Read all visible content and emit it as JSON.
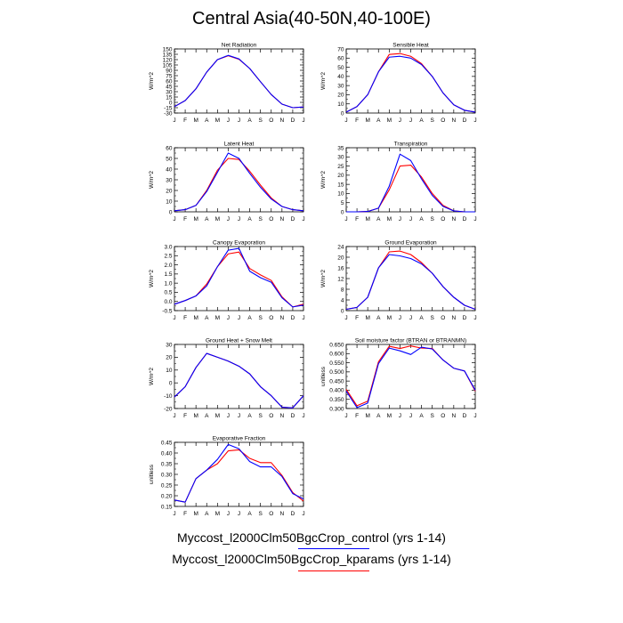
{
  "title": "Central Asia(40-50N,40-100E)",
  "legend": [
    {
      "label": "Myccost_l2000Clm50BgcCrop_control (yrs 1-14)",
      "color": "#0000ff"
    },
    {
      "label": "Myccost_l2000Clm50BgcCrop_kparams (yrs 1-14)",
      "color": "#ff0000"
    }
  ],
  "chart_data": [
    {
      "type": "line",
      "title": "Net Radiation",
      "ylabel": "W/m^2",
      "x": [
        "J",
        "F",
        "M",
        "A",
        "M",
        "J",
        "J",
        "A",
        "S",
        "O",
        "N",
        "D",
        "J"
      ],
      "ylim": [
        -30,
        150
      ],
      "yticks": [
        "-30",
        "-15",
        "0",
        "15",
        "30",
        "45",
        "60",
        "75",
        "90",
        "105",
        "120",
        "135",
        "150"
      ],
      "grid": false,
      "series": [
        {
          "color": "#0000ff",
          "values": [
            -12,
            5,
            38,
            85,
            120,
            132,
            122,
            95,
            58,
            22,
            -5,
            -15,
            -13
          ]
        },
        {
          "color": "#ff0000",
          "values": [
            -12,
            5,
            38,
            85,
            120,
            131,
            121,
            95,
            58,
            22,
            -5,
            -15,
            -13
          ]
        }
      ]
    },
    {
      "type": "line",
      "title": "Sensible Heat",
      "ylabel": "W/m^2",
      "x": [
        "J",
        "F",
        "M",
        "A",
        "M",
        "J",
        "J",
        "A",
        "S",
        "O",
        "N",
        "D",
        "J"
      ],
      "ylim": [
        0,
        70
      ],
      "yticks": [
        "0",
        "10",
        "20",
        "30",
        "40",
        "50",
        "60",
        "70"
      ],
      "grid": false,
      "series": [
        {
          "color": "#0000ff",
          "values": [
            1,
            7,
            20,
            45,
            61,
            62,
            60,
            53,
            40,
            22,
            9,
            3,
            1
          ]
        },
        {
          "color": "#ff0000",
          "values": [
            1,
            7,
            20,
            45,
            64,
            65,
            62,
            54,
            40,
            22,
            9,
            3,
            1
          ]
        }
      ]
    },
    {
      "type": "line",
      "title": "Latent Heat",
      "ylabel": "W/m^2",
      "x": [
        "J",
        "F",
        "M",
        "A",
        "M",
        "J",
        "J",
        "A",
        "S",
        "O",
        "N",
        "D",
        "J"
      ],
      "ylim": [
        0,
        60
      ],
      "yticks": [
        "0",
        "10",
        "20",
        "30",
        "40",
        "50",
        "60"
      ],
      "grid": false,
      "series": [
        {
          "color": "#0000ff",
          "values": [
            1,
            2,
            6,
            19,
            37,
            55,
            50,
            36,
            23,
            12,
            5,
            2,
            1
          ]
        },
        {
          "color": "#ff0000",
          "values": [
            1,
            2,
            6,
            20,
            39,
            50,
            49,
            38,
            25,
            13,
            5,
            2,
            1
          ]
        }
      ]
    },
    {
      "type": "line",
      "title": "Transpiration",
      "ylabel": "W/m^2",
      "x": [
        "J",
        "F",
        "M",
        "A",
        "M",
        "J",
        "J",
        "A",
        "S",
        "O",
        "N",
        "D",
        "J"
      ],
      "ylim": [
        0,
        35
      ],
      "yticks": [
        "0",
        "5",
        "10",
        "15",
        "20",
        "25",
        "30",
        "35"
      ],
      "grid": false,
      "series": [
        {
          "color": "#0000ff",
          "values": [
            0,
            0,
            0.2,
            2,
            14,
            31.5,
            28,
            18,
            9,
            3,
            0.5,
            0,
            0
          ]
        },
        {
          "color": "#ff0000",
          "values": [
            0,
            0,
            0.2,
            2,
            12,
            25,
            25.5,
            19,
            10,
            3.5,
            0.5,
            0,
            0
          ]
        }
      ]
    },
    {
      "type": "line",
      "title": "Canopy Evaporation",
      "ylabel": "W/m^2",
      "x": [
        "J",
        "F",
        "M",
        "A",
        "M",
        "J",
        "J",
        "A",
        "S",
        "O",
        "N",
        "D",
        "J"
      ],
      "ylim": [
        -0.5,
        3.0
      ],
      "yticks": [
        "-0.5",
        "0.0",
        "0.5",
        "1.0",
        "1.5",
        "2.0",
        "2.5",
        "3.0"
      ],
      "grid": false,
      "series": [
        {
          "color": "#0000ff",
          "values": [
            -0.15,
            0.05,
            0.3,
            0.85,
            1.9,
            2.8,
            2.9,
            1.65,
            1.3,
            1.05,
            0.2,
            -0.3,
            -0.2
          ]
        },
        {
          "color": "#ff0000",
          "values": [
            -0.15,
            0.05,
            0.3,
            0.95,
            1.9,
            2.6,
            2.7,
            1.8,
            1.45,
            1.15,
            0.25,
            -0.3,
            -0.15
          ]
        }
      ]
    },
    {
      "type": "line",
      "title": "Ground Evaporation",
      "ylabel": "W/m^2",
      "x": [
        "J",
        "F",
        "M",
        "A",
        "M",
        "J",
        "J",
        "A",
        "S",
        "O",
        "N",
        "D",
        "J"
      ],
      "ylim": [
        0,
        24
      ],
      "yticks": [
        "0",
        "4",
        "8",
        "12",
        "16",
        "20",
        "24"
      ],
      "grid": false,
      "series": [
        {
          "color": "#0000ff",
          "values": [
            0.5,
            1.2,
            5,
            16,
            21,
            20.5,
            19.5,
            17.5,
            14,
            9,
            5,
            2,
            0.5
          ]
        },
        {
          "color": "#ff0000",
          "values": [
            0.5,
            1.2,
            5,
            16,
            22,
            22.3,
            21,
            18,
            14,
            9,
            5,
            2,
            0.5
          ]
        }
      ]
    },
    {
      "type": "line",
      "title": "Ground Heat + Snow Melt",
      "ylabel": "W/m^2",
      "x": [
        "J",
        "F",
        "M",
        "A",
        "M",
        "J",
        "J",
        "A",
        "S",
        "O",
        "N",
        "D",
        "J"
      ],
      "ylim": [
        -20,
        30
      ],
      "yticks": [
        "-20",
        "-10",
        "0",
        "10",
        "20",
        "30"
      ],
      "grid": false,
      "series": [
        {
          "color": "#0000ff",
          "values": [
            -11,
            -3,
            12,
            23,
            20,
            17,
            13,
            7,
            -3,
            -10,
            -19,
            -19.5,
            -10
          ]
        },
        {
          "color": "#ff0000",
          "values": [
            -11,
            -3,
            12,
            23,
            20,
            17,
            13,
            7,
            -3,
            -10,
            -19,
            -19.5,
            -10
          ]
        }
      ]
    },
    {
      "type": "line",
      "title": "Soil moisture factor (BTRAN or BTRANMN)",
      "ylabel": "unitless",
      "x": [
        "J",
        "F",
        "M",
        "A",
        "M",
        "J",
        "J",
        "A",
        "S",
        "O",
        "N",
        "D",
        "J"
      ],
      "ylim": [
        0.3,
        0.65
      ],
      "yticks": [
        "0.300",
        "0.350",
        "0.400",
        "0.450",
        "0.500",
        "0.550",
        "0.600",
        "0.650"
      ],
      "grid": false,
      "series": [
        {
          "color": "#0000ff",
          "values": [
            0.395,
            0.305,
            0.33,
            0.545,
            0.63,
            0.615,
            0.595,
            0.635,
            0.625,
            0.565,
            0.52,
            0.505,
            0.4
          ]
        },
        {
          "color": "#ff0000",
          "values": [
            0.405,
            0.315,
            0.34,
            0.555,
            0.64,
            0.628,
            0.642,
            0.63,
            0.628,
            0.565,
            0.52,
            0.505,
            0.395
          ]
        }
      ]
    },
    {
      "type": "line",
      "title": "Evaporative Fraction",
      "ylabel": "unitless",
      "x": [
        "J",
        "F",
        "M",
        "A",
        "M",
        "J",
        "J",
        "A",
        "S",
        "O",
        "N",
        "D",
        "J"
      ],
      "ylim": [
        0.15,
        0.45
      ],
      "yticks": [
        "0.15",
        "0.20",
        "0.25",
        "0.30",
        "0.35",
        "0.40",
        "0.45"
      ],
      "grid": false,
      "series": [
        {
          "color": "#0000ff",
          "values": [
            0.18,
            0.17,
            0.28,
            0.32,
            0.37,
            0.44,
            0.42,
            0.36,
            0.335,
            0.335,
            0.29,
            0.21,
            0.185
          ]
        },
        {
          "color": "#ff0000",
          "values": [
            0.18,
            0.17,
            0.28,
            0.32,
            0.35,
            0.41,
            0.415,
            0.375,
            0.355,
            0.355,
            0.295,
            0.215,
            0.175
          ]
        }
      ]
    }
  ]
}
